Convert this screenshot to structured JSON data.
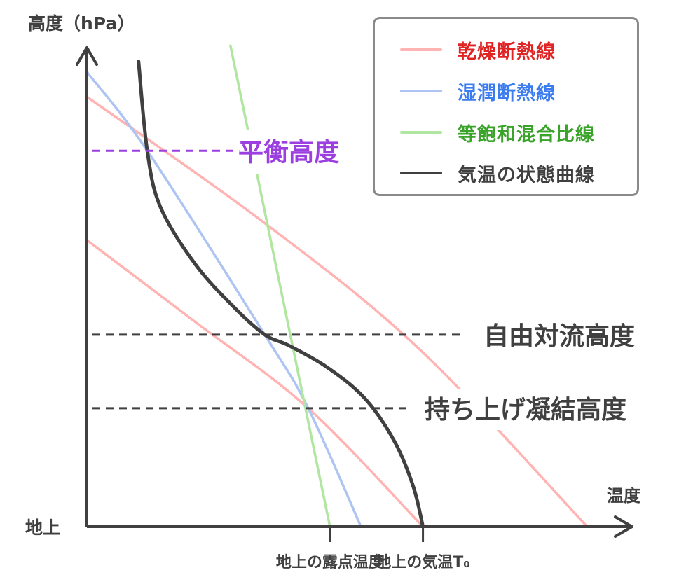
{
  "chart_data": {
    "type": "line",
    "title": "",
    "xlabel": "温度",
    "ylabel": "高度（hPa）",
    "x_origin_label": "地上",
    "xlim": [
      0,
      100
    ],
    "ylim": [
      0,
      100
    ],
    "grid": false,
    "legend_position": "top-right",
    "series": [
      {
        "name": "乾燥断熱線",
        "line_color": "#ffb3b3",
        "text_color": "#e02424",
        "points": [
          [
            0,
            90
          ],
          [
            33,
            63.3
          ],
          [
            61.3,
            37
          ],
          [
            92,
            0
          ]
        ]
      },
      {
        "name": "乾燥断熱線",
        "line_color": "#ffb3b3",
        "text_color": "#e02424",
        "points": [
          [
            0,
            60
          ],
          [
            20,
            42.8
          ],
          [
            40.7,
            24.8
          ],
          [
            61.8,
            0
          ]
        ]
      },
      {
        "name": "湿潤断熱線",
        "line_color": "#aec4f2",
        "text_color": "#3b7cf0",
        "points": [
          [
            0,
            95.2
          ],
          [
            11.1,
            78.7
          ],
          [
            32.7,
            40.2
          ],
          [
            40.7,
            24.8
          ],
          [
            50.4,
            0
          ]
        ]
      },
      {
        "name": "等飽和混合比線",
        "line_color": "#b0e6a0",
        "text_color": "#3aa32a",
        "points": [
          [
            26.4,
            100.7
          ],
          [
            44.7,
            0
          ]
        ]
      },
      {
        "name": "気温の状態曲線",
        "line_color": "#404040",
        "text_color": "#404040",
        "points": [
          [
            9.5,
            97.4
          ],
          [
            11.1,
            78.7
          ],
          [
            13.5,
            67
          ],
          [
            19.9,
            55
          ],
          [
            27,
            46
          ],
          [
            32.7,
            40.2
          ],
          [
            37,
            38
          ],
          [
            44,
            33.5
          ],
          [
            51,
            27
          ],
          [
            56.5,
            18
          ],
          [
            60,
            8.5
          ],
          [
            61.8,
            0
          ]
        ]
      }
    ],
    "levels": [
      {
        "name": "平衡高度",
        "height": 78.7,
        "color": "#9b3fe0",
        "dash_end": 28
      },
      {
        "name": "自由対流高度",
        "height": 40.2,
        "color": "#404040",
        "dash_end": 69.5
      },
      {
        "name": "持ち上げ凝結高度",
        "height": 24.8,
        "color": "#404040",
        "dash_end": 59
      }
    ],
    "x_markers": [
      {
        "name": "地上の露点温度",
        "x": 44.7
      },
      {
        "name": "地上の気温T₀",
        "x": 61.8
      }
    ]
  },
  "colors": {
    "axis": "#404040",
    "legend_border": "#8a8a8a"
  }
}
